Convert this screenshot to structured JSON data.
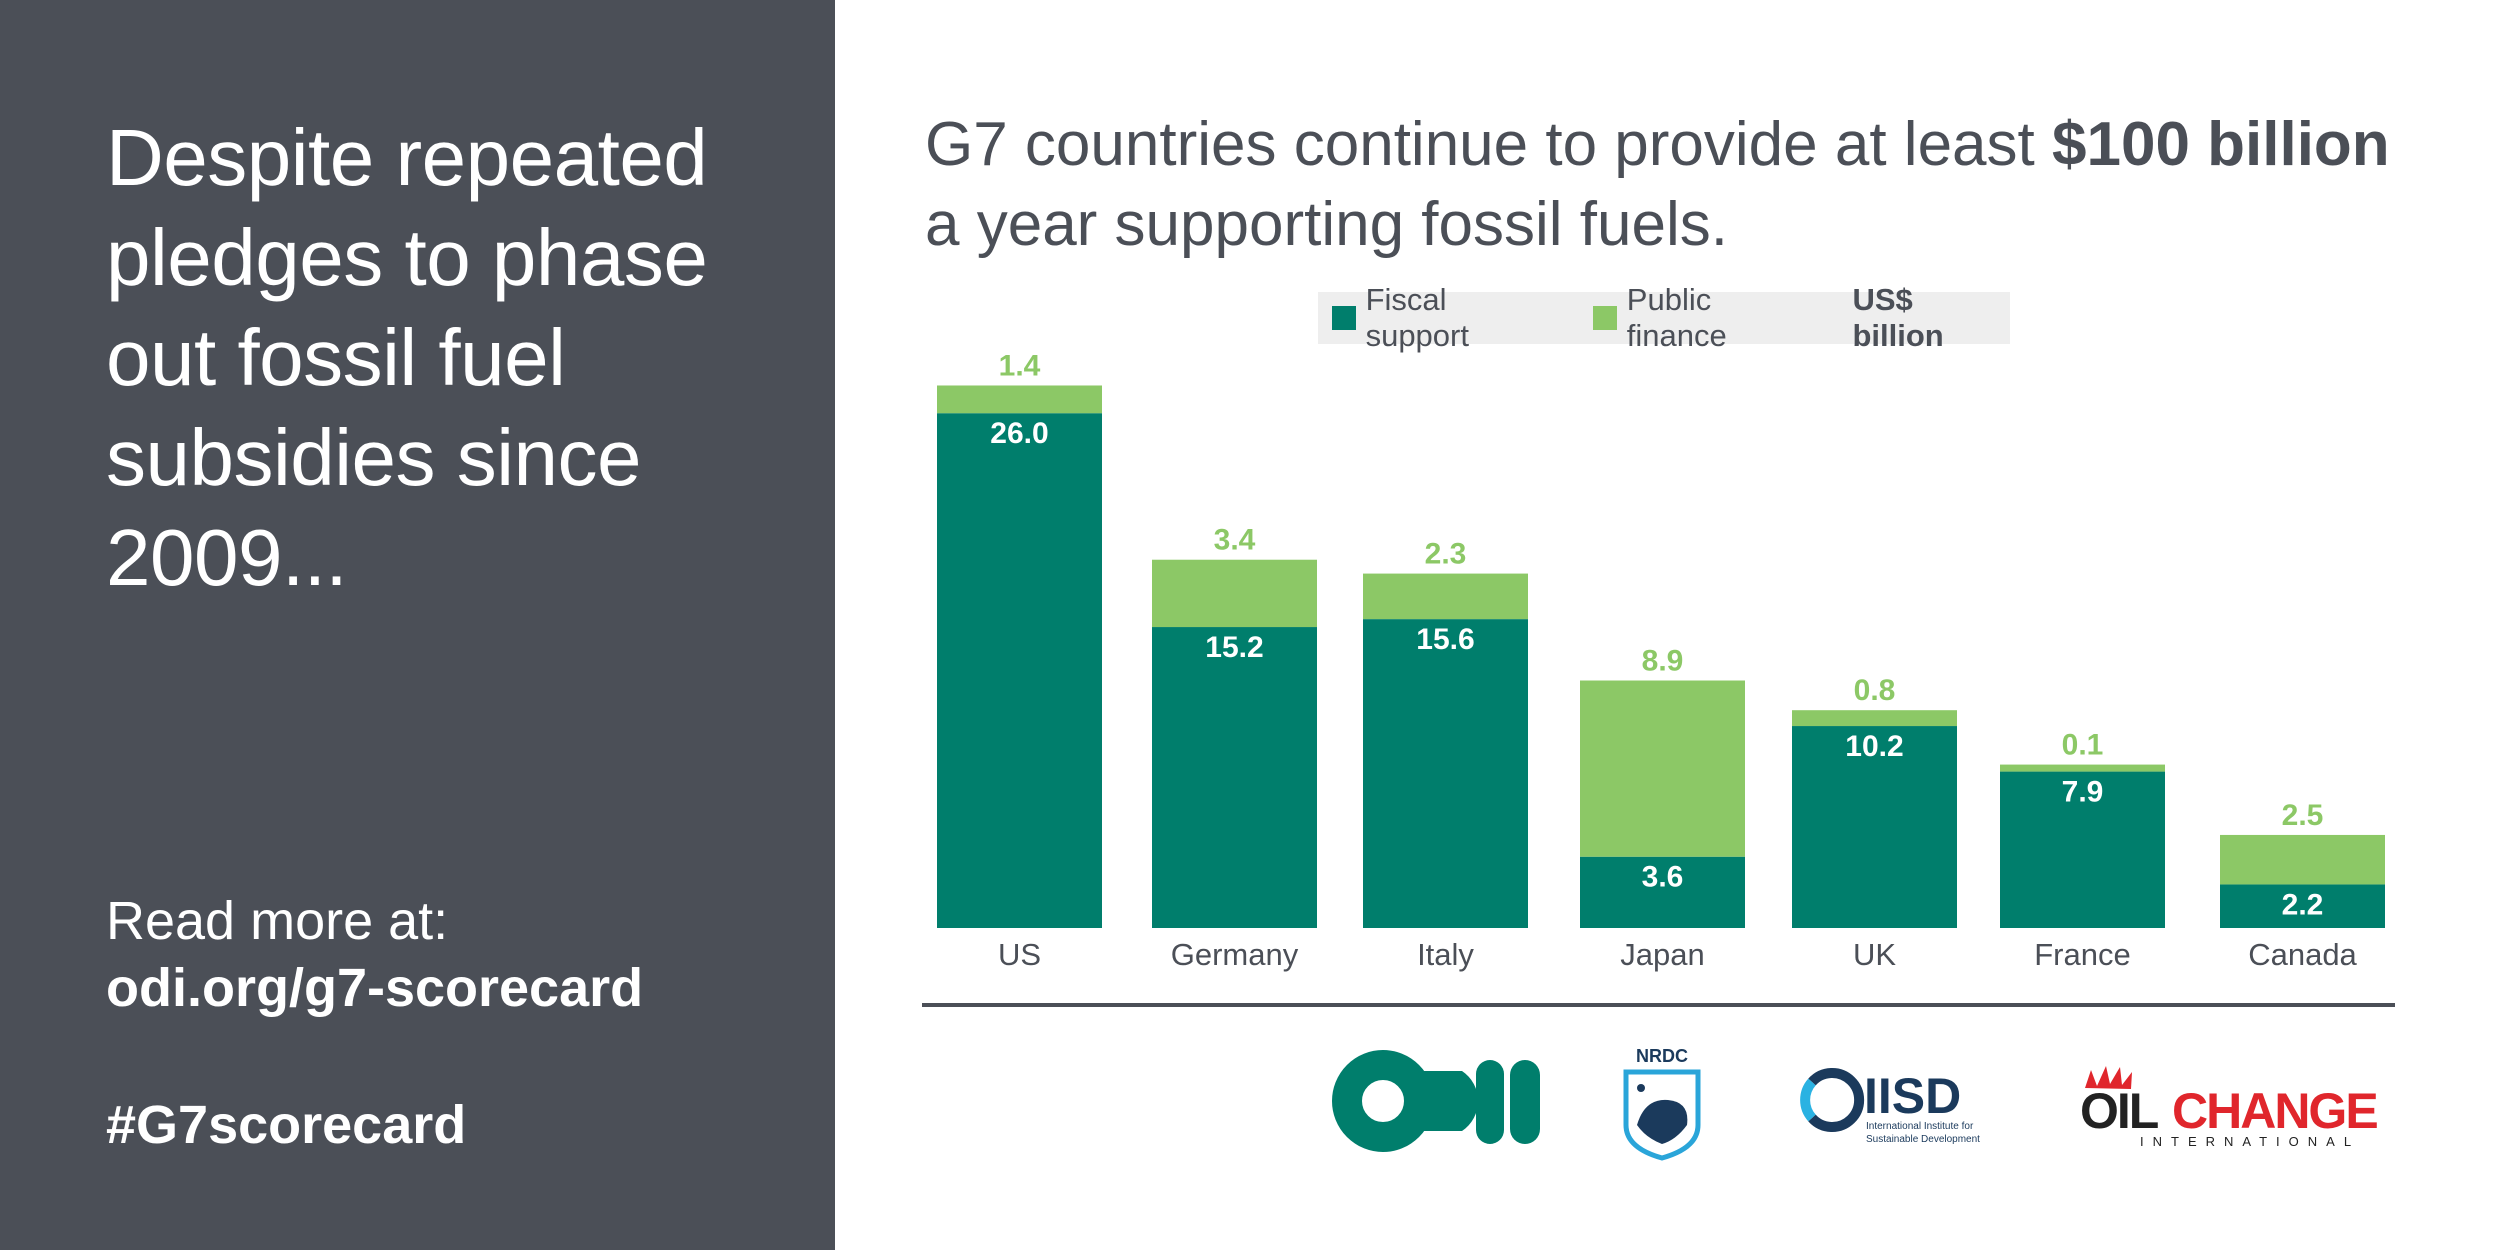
{
  "left_panel": {
    "headline": "Despite repeated pledges to phase out fossil fuel subsidies since 2009...",
    "read_more": "Read more at:",
    "link": "odi.org/g7-scorecard",
    "hashtag": "#G7scorecard"
  },
  "title": {
    "part1": "G7 countries continue to provide at least ",
    "bold": "$100 billion",
    "part2": " a year supporting fossil fuels."
  },
  "colors": {
    "fiscal": "#007e6c",
    "public": "#8cc866",
    "panel": "#4b4f57"
  },
  "chart_data": {
    "type": "bar",
    "stacked": true,
    "categories": [
      "US",
      "Germany",
      "Italy",
      "Japan",
      "UK",
      "France",
      "Canada"
    ],
    "series": [
      {
        "name": "Fiscal support",
        "values": [
          26.0,
          15.2,
          15.6,
          3.6,
          10.2,
          7.9,
          2.2
        ]
      },
      {
        "name": "Public finance",
        "values": [
          1.4,
          3.4,
          2.3,
          8.9,
          0.8,
          0.1,
          2.5
        ]
      }
    ],
    "unit_label": "US$ billion",
    "legend_position": "top-center",
    "grid": false
  },
  "logos": {
    "odi": "odi",
    "nrdc": "NRDC",
    "iisd": "IISD",
    "iisd_sub1": "International Institute for",
    "iisd_sub2": "Sustainable Development",
    "oci_oil": "OIL",
    "oci_change": "CHANGE",
    "oci_international": "INTERNATIONAL"
  }
}
